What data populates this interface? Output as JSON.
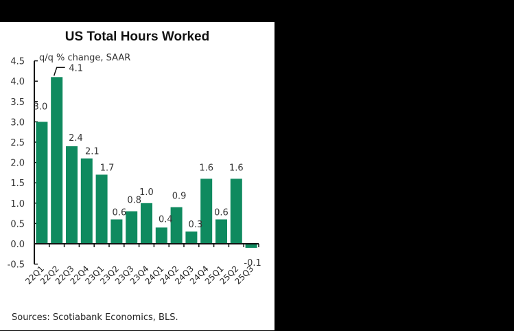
{
  "chart_data": {
    "type": "bar",
    "title": "US Total Hours Worked",
    "subtitle": "q/q % change, SAAR",
    "xlabel": "",
    "ylabel": "q/q % change, SAAR",
    "ylim": [
      -0.5,
      4.5
    ],
    "yticks": [
      "4.5",
      "4.0",
      "3.5",
      "3.0",
      "2.5",
      "2.0",
      "1.5",
      "1.0",
      "0.5",
      "0.0",
      "-0.5"
    ],
    "grid": false,
    "legend": null,
    "categories": [
      "22Q1",
      "22Q2",
      "22Q3",
      "22Q4",
      "23Q1",
      "23Q2",
      "23Q3",
      "23Q4",
      "24Q1",
      "24Q2",
      "24Q3",
      "24Q4",
      "25Q1",
      "25Q2",
      "25Q3"
    ],
    "values": [
      3.0,
      4.1,
      2.4,
      2.1,
      1.7,
      0.6,
      0.8,
      1.0,
      0.4,
      0.9,
      0.3,
      1.6,
      0.6,
      1.6,
      -0.1
    ],
    "labels": [
      "3.0",
      "4.1",
      "2.4",
      "2.1",
      "1.7",
      "0.6",
      "0.8",
      "1.0",
      "0.4",
      "0.9",
      "0.3",
      "1.6",
      "0.6",
      "1.6",
      "-0.1"
    ],
    "bar_color": "#0f8a5f",
    "source": "Sources: Scotiabank Economics, BLS."
  }
}
